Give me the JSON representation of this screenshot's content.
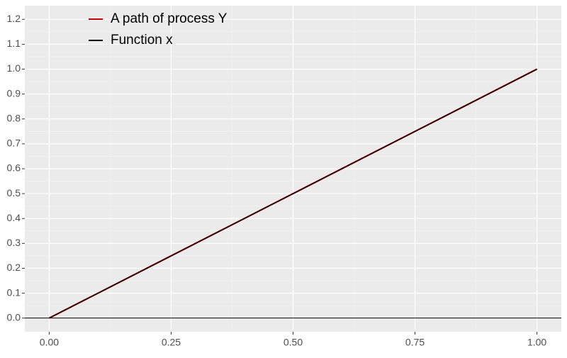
{
  "chart_data": {
    "type": "line",
    "x": [
      0,
      0.25,
      0.5,
      0.75,
      1
    ],
    "series": [
      {
        "name": "A path of process Y",
        "color": "#cc0000",
        "values": [
          0,
          0.25,
          0.5,
          0.75,
          1
        ]
      },
      {
        "name": "Function x",
        "color": "#000000",
        "values": [
          0,
          0.25,
          0.5,
          0.75,
          1
        ]
      }
    ],
    "xlim": [
      -0.05,
      1.05
    ],
    "ylim": [
      -0.055,
      1.255
    ],
    "xticks": [
      {
        "value": 0,
        "label": "0.00"
      },
      0.25,
      {
        "value": 0.5,
        "label": "0.50"
      },
      0.75,
      {
        "value": 1,
        "label": "1.00"
      }
    ],
    "yticks": [
      {
        "value": 0,
        "label": "0.0"
      },
      0.1,
      0.2,
      0.3,
      0.4,
      0.5,
      0.6,
      0.7,
      0.8,
      0.9,
      {
        "value": 1,
        "label": "1.0"
      },
      1.1,
      1.2
    ],
    "hline": 0,
    "grid": true,
    "legend": "top-left"
  }
}
